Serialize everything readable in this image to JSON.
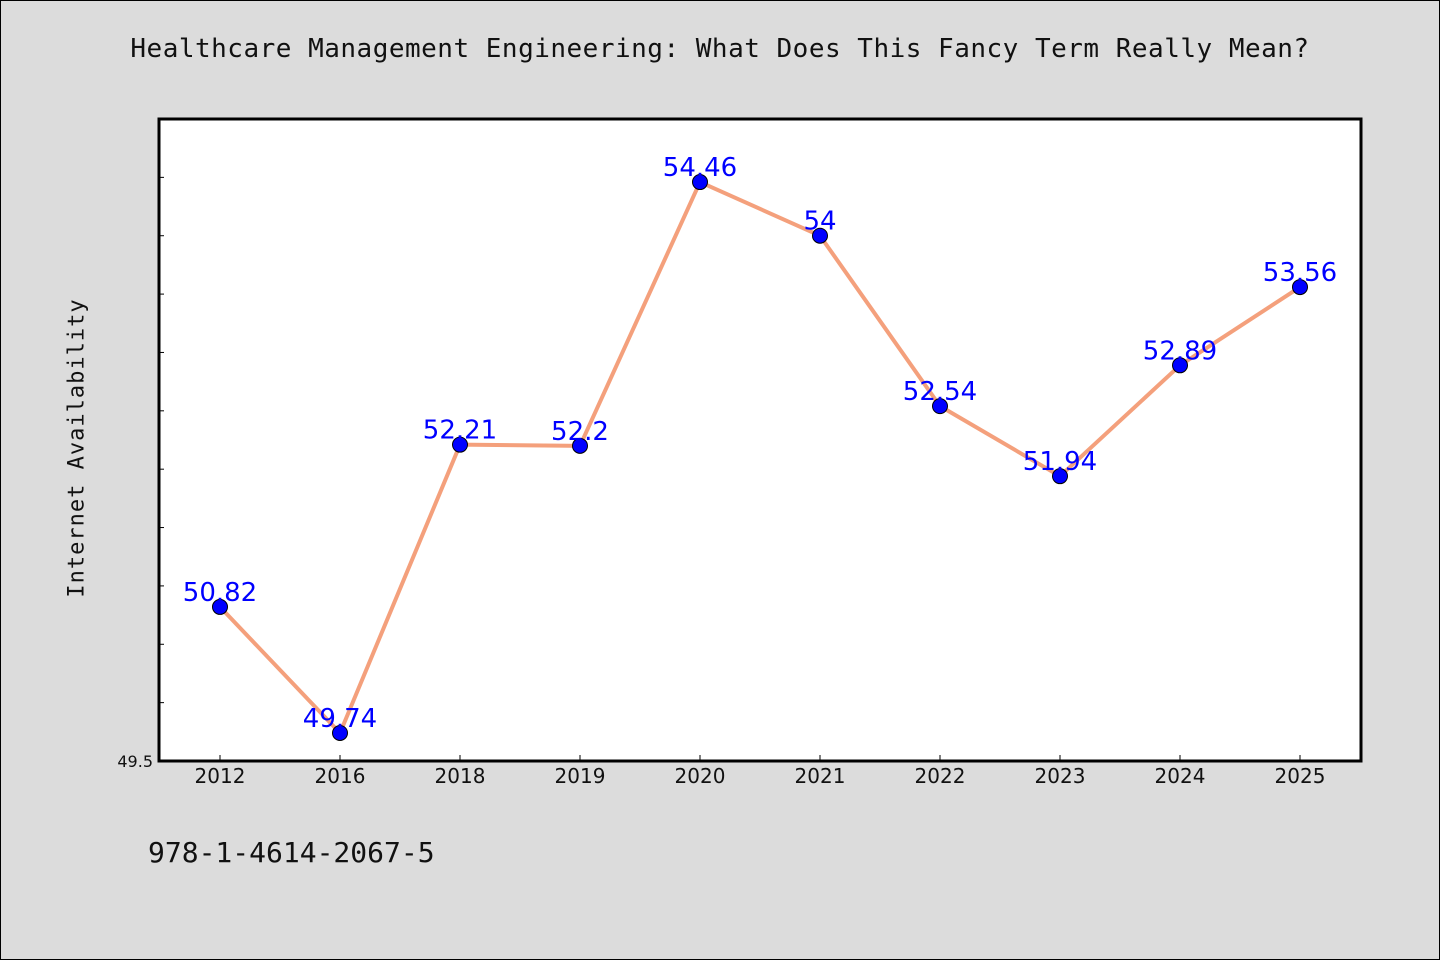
{
  "title": "Healthcare Management Engineering: What Does This Fancy Term Really Mean?",
  "footer_text": "978-1-4614-2067-5",
  "chart_data": {
    "type": "line",
    "title": "Healthcare Management Engineering: What Does This Fancy Term Really Mean?",
    "xlabel": "",
    "ylabel": "Internet Availability",
    "categories": [
      "2012",
      "2016",
      "2018",
      "2019",
      "2020",
      "2021",
      "2022",
      "2023",
      "2024",
      "2025"
    ],
    "values": [
      50.82,
      49.74,
      52.21,
      52.2,
      54.46,
      54,
      52.54,
      51.94,
      52.89,
      53.56
    ],
    "data_labels": [
      "50.82",
      "49.74",
      "52.21",
      "52.2",
      "54.46",
      "54",
      "52.54",
      "51.94",
      "52.89",
      "53.56"
    ],
    "ylim": [
      49.5,
      55.0
    ],
    "y_tick_labels": [
      "49.5"
    ],
    "grid": false,
    "legend": "none",
    "colors": {
      "line": "#f4a07c",
      "marker": "#0000ff",
      "label": "#0000ff",
      "plot_background": "#ffffff",
      "page_background": "#dcdcdc"
    }
  }
}
